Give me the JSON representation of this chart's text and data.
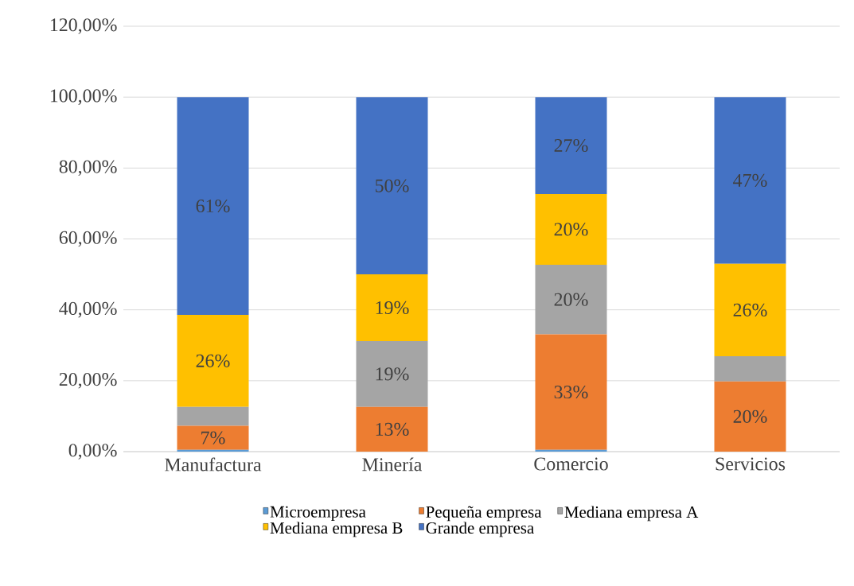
{
  "chart_data": {
    "type": "bar",
    "stacked": true,
    "categories": [
      "Manufactura",
      "Minería",
      "Comercio",
      "Servicios"
    ],
    "series": [
      {
        "name": "Microempresa",
        "color": "#5b9bd5",
        "values": [
          0.5,
          0,
          0.5,
          0
        ],
        "value_labels": [
          null,
          null,
          null,
          null
        ]
      },
      {
        "name": "Pequeña empresa",
        "color": "#ed7d31",
        "values": [
          6.8,
          12.6,
          32.6,
          19.8
        ],
        "value_labels": [
          "7%",
          "13%",
          "33%",
          "20%"
        ]
      },
      {
        "name": "Mediana empresa A",
        "color": "#a5a5a5",
        "values": [
          5.3,
          18.6,
          19.6,
          7.1
        ],
        "value_labels": [
          null,
          "19%",
          "20%",
          null
        ]
      },
      {
        "name": "Mediana empresa B",
        "color": "#ffc000",
        "values": [
          26.0,
          18.8,
          20.0,
          26.1
        ],
        "value_labels": [
          "26%",
          "19%",
          "20%",
          "26%"
        ]
      },
      {
        "name": "Grande empresa",
        "color": "#4472c4",
        "values": [
          61.4,
          50.0,
          27.3,
          47.0
        ],
        "value_labels": [
          "61%",
          "50%",
          "27%",
          "47%"
        ]
      }
    ],
    "ylim": [
      0,
      120
    ],
    "yticks": [
      {
        "value": 0,
        "label": "0,00%"
      },
      {
        "value": 20,
        "label": "20,00%"
      },
      {
        "value": 40,
        "label": "40,00%"
      },
      {
        "value": 60,
        "label": "60,00%"
      },
      {
        "value": 80,
        "label": "80,00%"
      },
      {
        "value": 100,
        "label": "100,00%"
      },
      {
        "value": 120,
        "label": "120,00%"
      }
    ],
    "grid": "y",
    "legend": "bottom"
  }
}
